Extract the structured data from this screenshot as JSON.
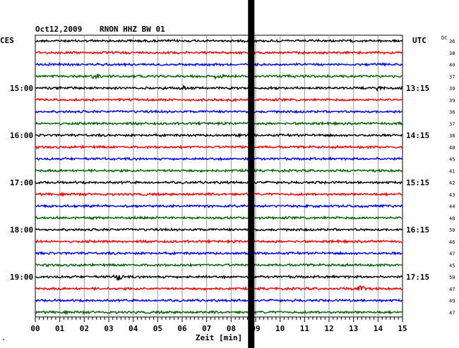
{
  "header": {
    "date": "Oct12,2009",
    "station": "RNON HHZ BW 01",
    "left_zone": "CES",
    "right_zone": "UTC",
    "dc_label": "DC"
  },
  "chart_data": {
    "type": "line",
    "title": "Oct12,2009   RNON HHZ BW 01",
    "xlabel": "Zeit [min]",
    "ylabel": "",
    "x_ticks": [
      "00",
      "01",
      "02",
      "03",
      "04",
      "05",
      "06",
      "07",
      "08",
      "09",
      "10",
      "11",
      "12",
      "13",
      "14",
      "15"
    ],
    "xlim": [
      0,
      15
    ],
    "grid": true,
    "trace_colors": [
      "#000000",
      "#ff0000",
      "#0000ff",
      "#006400"
    ],
    "traces": 24,
    "left_time_labels": [
      {
        "row": 4,
        "label": "15:00"
      },
      {
        "row": 8,
        "label": "16:00"
      },
      {
        "row": 12,
        "label": "17:00"
      },
      {
        "row": 16,
        "label": "18:00"
      },
      {
        "row": 20,
        "label": "19:00"
      }
    ],
    "right_time_labels": [
      {
        "row": 4,
        "label": "13:15"
      },
      {
        "row": 8,
        "label": "14:15"
      },
      {
        "row": 12,
        "label": "15:15"
      },
      {
        "row": 16,
        "label": "16:15"
      },
      {
        "row": 20,
        "label": "17:15"
      }
    ],
    "dc_values": [
      "36",
      "38",
      "40",
      "37",
      "39",
      "39",
      "36",
      "37",
      "38",
      "40",
      "45",
      "41",
      "42",
      "43",
      "44",
      "48",
      "50",
      "46",
      "47",
      "45",
      "50",
      "47",
      "49",
      "47"
    ],
    "events": [
      {
        "row": 3,
        "minute": 2.5,
        "amp": 5
      },
      {
        "row": 3,
        "minute": 7.5,
        "amp": 4
      },
      {
        "row": 4,
        "minute": 6.0,
        "amp": 4
      },
      {
        "row": 4,
        "minute": 14.0,
        "amp": 3
      },
      {
        "row": 12,
        "minute": 8.0,
        "amp": 3
      },
      {
        "row": 20,
        "minute": 3.4,
        "amp": 7
      },
      {
        "row": 21,
        "minute": 13.3,
        "amp": 6
      }
    ],
    "spike_minute": 8.82
  },
  "footer_mark": "\""
}
